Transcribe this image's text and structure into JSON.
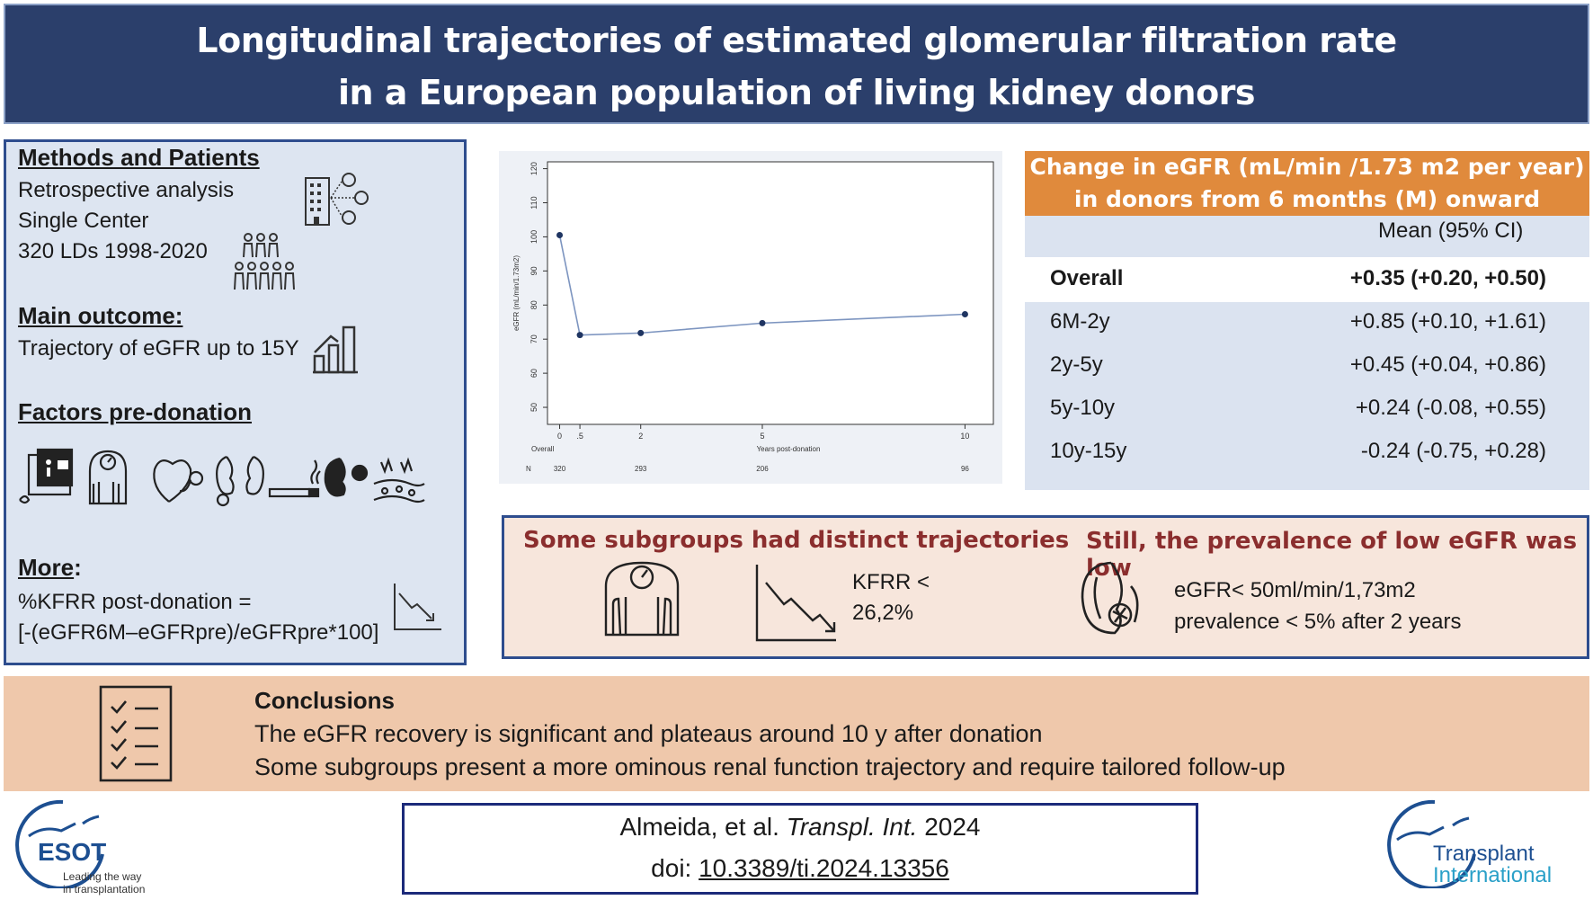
{
  "header": {
    "title_line1": "Longitudinal trajectories of estimated glomerular filtration rate",
    "title_line2": "in a European population of living kidney donors"
  },
  "methods": {
    "heading": "Methods and Patients",
    "lines": [
      "Retrospective analysis",
      "Single Center",
      "320 LDs 1998-2020"
    ],
    "outcome_heading": "Main outcome:",
    "outcome_text": "Trajectory of eGFR up to 15Y",
    "factors_heading": "Factors pre-donation",
    "more_heading": "More",
    "more_colon": ":",
    "more_line1": "%KFRR post-donation =",
    "more_line2": "[-(eGFR6M–eGFRpre)/eGFRpre*100]"
  },
  "chart_data": {
    "type": "line",
    "x": [
      0,
      0.5,
      2,
      5,
      10
    ],
    "y": [
      100.5,
      71.2,
      71.8,
      74.7,
      77.3
    ],
    "xlabel": "Years post-donation",
    "ylabel": "eGFR (mL/min/1.73m2)",
    "xticks": [
      0,
      0.5,
      2,
      5,
      10
    ],
    "xtick_labels": [
      "0",
      ".5",
      "2",
      "5",
      "10"
    ],
    "yticks": [
      50,
      60,
      70,
      80,
      90,
      100,
      110,
      120
    ],
    "ylim": [
      45,
      122
    ],
    "xlim": [
      -0.3,
      10.7
    ],
    "overall_label": "Overall",
    "n_label": "N",
    "n_values": [
      "320",
      "293",
      "206",
      "96"
    ],
    "n_at_x": [
      0,
      2,
      5,
      10
    ],
    "grid": false
  },
  "table": {
    "title_line1": "Change in eGFR (mL/min /1.73 m2 per year)",
    "title_line2": "in donors from 6 months (M) onward",
    "col_header": "Mean (95% CI)",
    "overall_label": "Overall",
    "overall_value": "+0.35 (+0.20, +0.50)",
    "rows": [
      {
        "period": "6M-2y",
        "value": "+0.85 (+0.10, +1.61)"
      },
      {
        "period": "2y-5y",
        "value": "+0.45 (+0.04, +0.86)"
      },
      {
        "period": "5y-10y",
        "value": "+0.24 (-0.08, +0.55)"
      },
      {
        "period": "10y-15y",
        "value": "-0.24 (-0.75, +0.28)"
      }
    ]
  },
  "subgroups": {
    "heading_left": "Some subgroups had distinct trajectories",
    "kfrr_line1": "KFRR <",
    "kfrr_line2": "26,2%",
    "heading_right": "Still, the prevalence of low eGFR was low",
    "egfr_line1": "eGFR< 50ml/min/1,73m2",
    "egfr_line2": "prevalence < 5% after 2 years"
  },
  "conclusions": {
    "heading": "Conclusions",
    "line1": "The eGFR recovery is significant and plateaus around 10 y after donation",
    "line2": "Some subgroups present a more ominous renal function trajectory and require tailored  follow-up"
  },
  "citation": {
    "authors": "Almeida, et al. ",
    "journal": "Transpl. Int.",
    "year": " 2024",
    "doi_prefix": "doi: ",
    "doi": "10.3389/ti.2024.13356"
  },
  "logos": {
    "esot_name": "ESOT",
    "esot_tag1": "Leading the way",
    "esot_tag2": "in transplantation",
    "ti_line1": "Transplant",
    "ti_line2": "International"
  },
  "colors": {
    "header_bg": "#2b3f6b",
    "table_head": "#e08a3c",
    "subgroup_red": "#8b2e2e",
    "conclusion_bg": "#efc8ab",
    "chart_line": "#7d95c0"
  }
}
